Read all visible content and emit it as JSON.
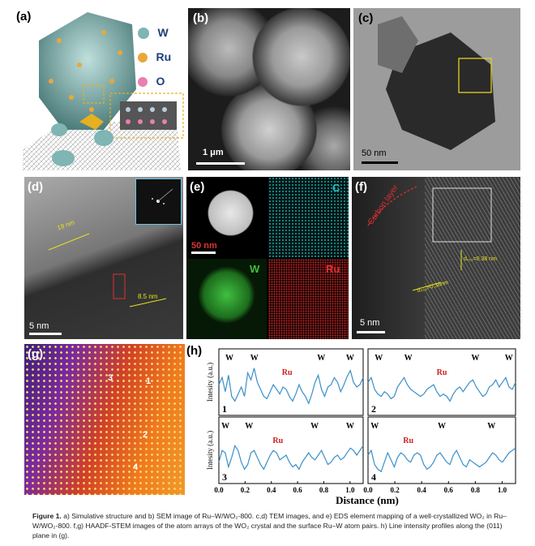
{
  "panels": {
    "a": {
      "label": "(a)",
      "legend": [
        {
          "symbol": "W",
          "color": "#7fb5b2"
        },
        {
          "symbol": "Ru",
          "color": "#e8a83a"
        },
        {
          "symbol": "O",
          "color": "#e87fb0"
        }
      ]
    },
    "b": {
      "label": "(b)",
      "scale": "1 μm"
    },
    "c": {
      "label": "(c)",
      "scale": "50 nm"
    },
    "d": {
      "label": "(d)",
      "scale": "5 nm",
      "m1": "19 nm",
      "m2": "8.5 nm"
    },
    "e": {
      "label": "(e)",
      "scale": "50 nm",
      "maps": [
        {
          "el": "C",
          "color": "#22c5c5"
        },
        {
          "el": "W",
          "color": "#3fbf3f"
        },
        {
          "el": "Ru",
          "color": "#e03030"
        }
      ]
    },
    "f": {
      "label": "(f)",
      "scale": "5 nm",
      "carbon": "Carbon layer",
      "d1": "d₀₁₁=0.38 nm",
      "d2": "d₀₀₂=0.38nm"
    },
    "g": {
      "label": "(g)",
      "marks": [
        "1",
        "2",
        "3",
        "4"
      ]
    },
    "h": {
      "label": "(h)"
    }
  },
  "chart_data": {
    "type": "line",
    "xlabel": "Distance (nm)",
    "ylabel": "Intesity (a.u.)",
    "xlim": [
      0,
      1.1
    ],
    "xticks": [
      "0.0",
      "0.2",
      "0.4",
      "0.6",
      "0.8",
      "1.0"
    ],
    "peak_labels": [
      "W",
      "W",
      "Ru",
      "W",
      "W"
    ],
    "subplots": [
      {
        "id": "1",
        "peaks": [
          {
            "t": "W",
            "x": 0.08
          },
          {
            "t": "W",
            "x": 0.27
          },
          {
            "t": "Ru",
            "x": 0.52
          },
          {
            "t": "W",
            "x": 0.78
          },
          {
            "t": "W",
            "x": 1.0
          }
        ],
        "y": [
          0.55,
          0.7,
          0.4,
          0.75,
          0.3,
          0.2,
          0.35,
          0.5,
          0.3,
          0.8,
          0.65,
          0.9,
          0.6,
          0.45,
          0.3,
          0.25,
          0.4,
          0.55,
          0.45,
          0.35,
          0.5,
          0.45,
          0.3,
          0.2,
          0.35,
          0.55,
          0.4,
          0.3,
          0.15,
          0.35,
          0.6,
          0.75,
          0.45,
          0.3,
          0.5,
          0.55,
          0.7,
          0.6,
          0.4,
          0.55,
          0.72,
          0.85,
          0.6,
          0.5,
          0.55,
          0.7
        ]
      },
      {
        "id": "2",
        "peaks": [
          {
            "t": "W",
            "x": 0.08
          },
          {
            "t": "W",
            "x": 0.3
          },
          {
            "t": "Ru",
            "x": 0.55
          },
          {
            "t": "W",
            "x": 0.8
          },
          {
            "t": "W",
            "x": 1.05
          }
        ],
        "y": [
          0.6,
          0.7,
          0.45,
          0.35,
          0.3,
          0.4,
          0.35,
          0.25,
          0.3,
          0.5,
          0.6,
          0.7,
          0.55,
          0.45,
          0.4,
          0.35,
          0.3,
          0.35,
          0.45,
          0.5,
          0.55,
          0.4,
          0.3,
          0.35,
          0.3,
          0.2,
          0.35,
          0.45,
          0.5,
          0.4,
          0.5,
          0.6,
          0.65,
          0.5,
          0.4,
          0.3,
          0.35,
          0.5,
          0.55,
          0.65,
          0.5,
          0.6,
          0.7,
          0.5,
          0.45,
          0.6
        ]
      },
      {
        "id": "3",
        "peaks": [
          {
            "t": "W",
            "x": 0.05
          },
          {
            "t": "W",
            "x": 0.23
          },
          {
            "t": "Ru",
            "x": 0.45
          },
          {
            "t": "W",
            "x": 0.73
          },
          {
            "t": "W",
            "x": 1.0
          }
        ],
        "y": [
          0.35,
          0.6,
          0.55,
          0.25,
          0.45,
          0.7,
          0.6,
          0.35,
          0.2,
          0.3,
          0.55,
          0.6,
          0.45,
          0.3,
          0.2,
          0.35,
          0.5,
          0.6,
          0.55,
          0.4,
          0.45,
          0.5,
          0.35,
          0.25,
          0.3,
          0.2,
          0.35,
          0.45,
          0.55,
          0.45,
          0.4,
          0.5,
          0.6,
          0.45,
          0.3,
          0.35,
          0.45,
          0.5,
          0.4,
          0.45,
          0.55,
          0.65,
          0.6,
          0.5,
          0.6,
          0.7
        ]
      },
      {
        "id": "4",
        "peaks": [
          {
            "t": "W",
            "x": 0.05
          },
          {
            "t": "Ru",
            "x": 0.3
          },
          {
            "t": "W",
            "x": 0.55
          },
          {
            "t": "W",
            "x": 0.92
          }
        ],
        "y": [
          0.5,
          0.6,
          0.3,
          0.2,
          0.15,
          0.35,
          0.55,
          0.4,
          0.25,
          0.45,
          0.55,
          0.5,
          0.4,
          0.35,
          0.5,
          0.55,
          0.5,
          0.3,
          0.2,
          0.25,
          0.35,
          0.5,
          0.55,
          0.45,
          0.35,
          0.3,
          0.5,
          0.6,
          0.45,
          0.3,
          0.25,
          0.4,
          0.35,
          0.3,
          0.25,
          0.3,
          0.35,
          0.45,
          0.55,
          0.5,
          0.4,
          0.35,
          0.45,
          0.55,
          0.6,
          0.65
        ]
      }
    ]
  },
  "caption": {
    "bold": "Figure 1.",
    "text": "  a) Simulative structure and b) SEM image of Ru–W/WO₂-800. c,d) TEM images, and e) EDS element mapping of a well-crystallized WO₂ in Ru–W/WO₂-800. f,g) HAADF-STEM images of the atom arrays of the WO₂ crystal and the surface Ru–W atom pairs. h) Line intensity profiles along the (011) plane in (g)."
  }
}
